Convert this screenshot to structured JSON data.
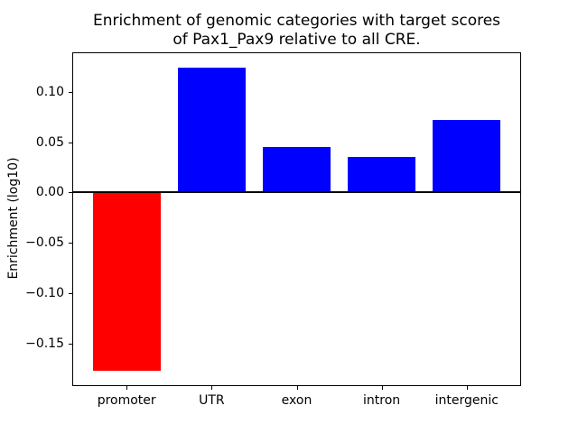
{
  "chart_data": {
    "type": "bar",
    "title": "Enrichment of genomic categories with target scores\nof Pax1_Pax9 relative to all CRE.",
    "ylabel": "Enrichment (log10)",
    "xlabel": "",
    "categories": [
      "promoter",
      "UTR",
      "exon",
      "intron",
      "intergenic"
    ],
    "values": [
      -0.177,
      0.124,
      0.045,
      0.035,
      0.072
    ],
    "bar_colors": [
      "#ff0000",
      "#0000ff",
      "#0000ff",
      "#0000ff",
      "#0000ff"
    ],
    "positive_color": "#0000ff",
    "negative_color": "#ff0000",
    "bar_width": 0.8,
    "xlim": [
      -0.64,
      4.64
    ],
    "ylim": [
      -0.192,
      0.139
    ],
    "yticks": {
      "values": [
        0.1,
        0.05,
        0.0,
        -0.05,
        -0.1,
        -0.15
      ],
      "labels": [
        "0.10",
        "0.05",
        "0.00",
        "−0.05",
        "−0.10",
        "−0.15"
      ]
    },
    "zero_line": {
      "value": 0,
      "color": "#000000"
    },
    "grid": false,
    "background": "#ffffff",
    "spine_color": "#000000"
  }
}
